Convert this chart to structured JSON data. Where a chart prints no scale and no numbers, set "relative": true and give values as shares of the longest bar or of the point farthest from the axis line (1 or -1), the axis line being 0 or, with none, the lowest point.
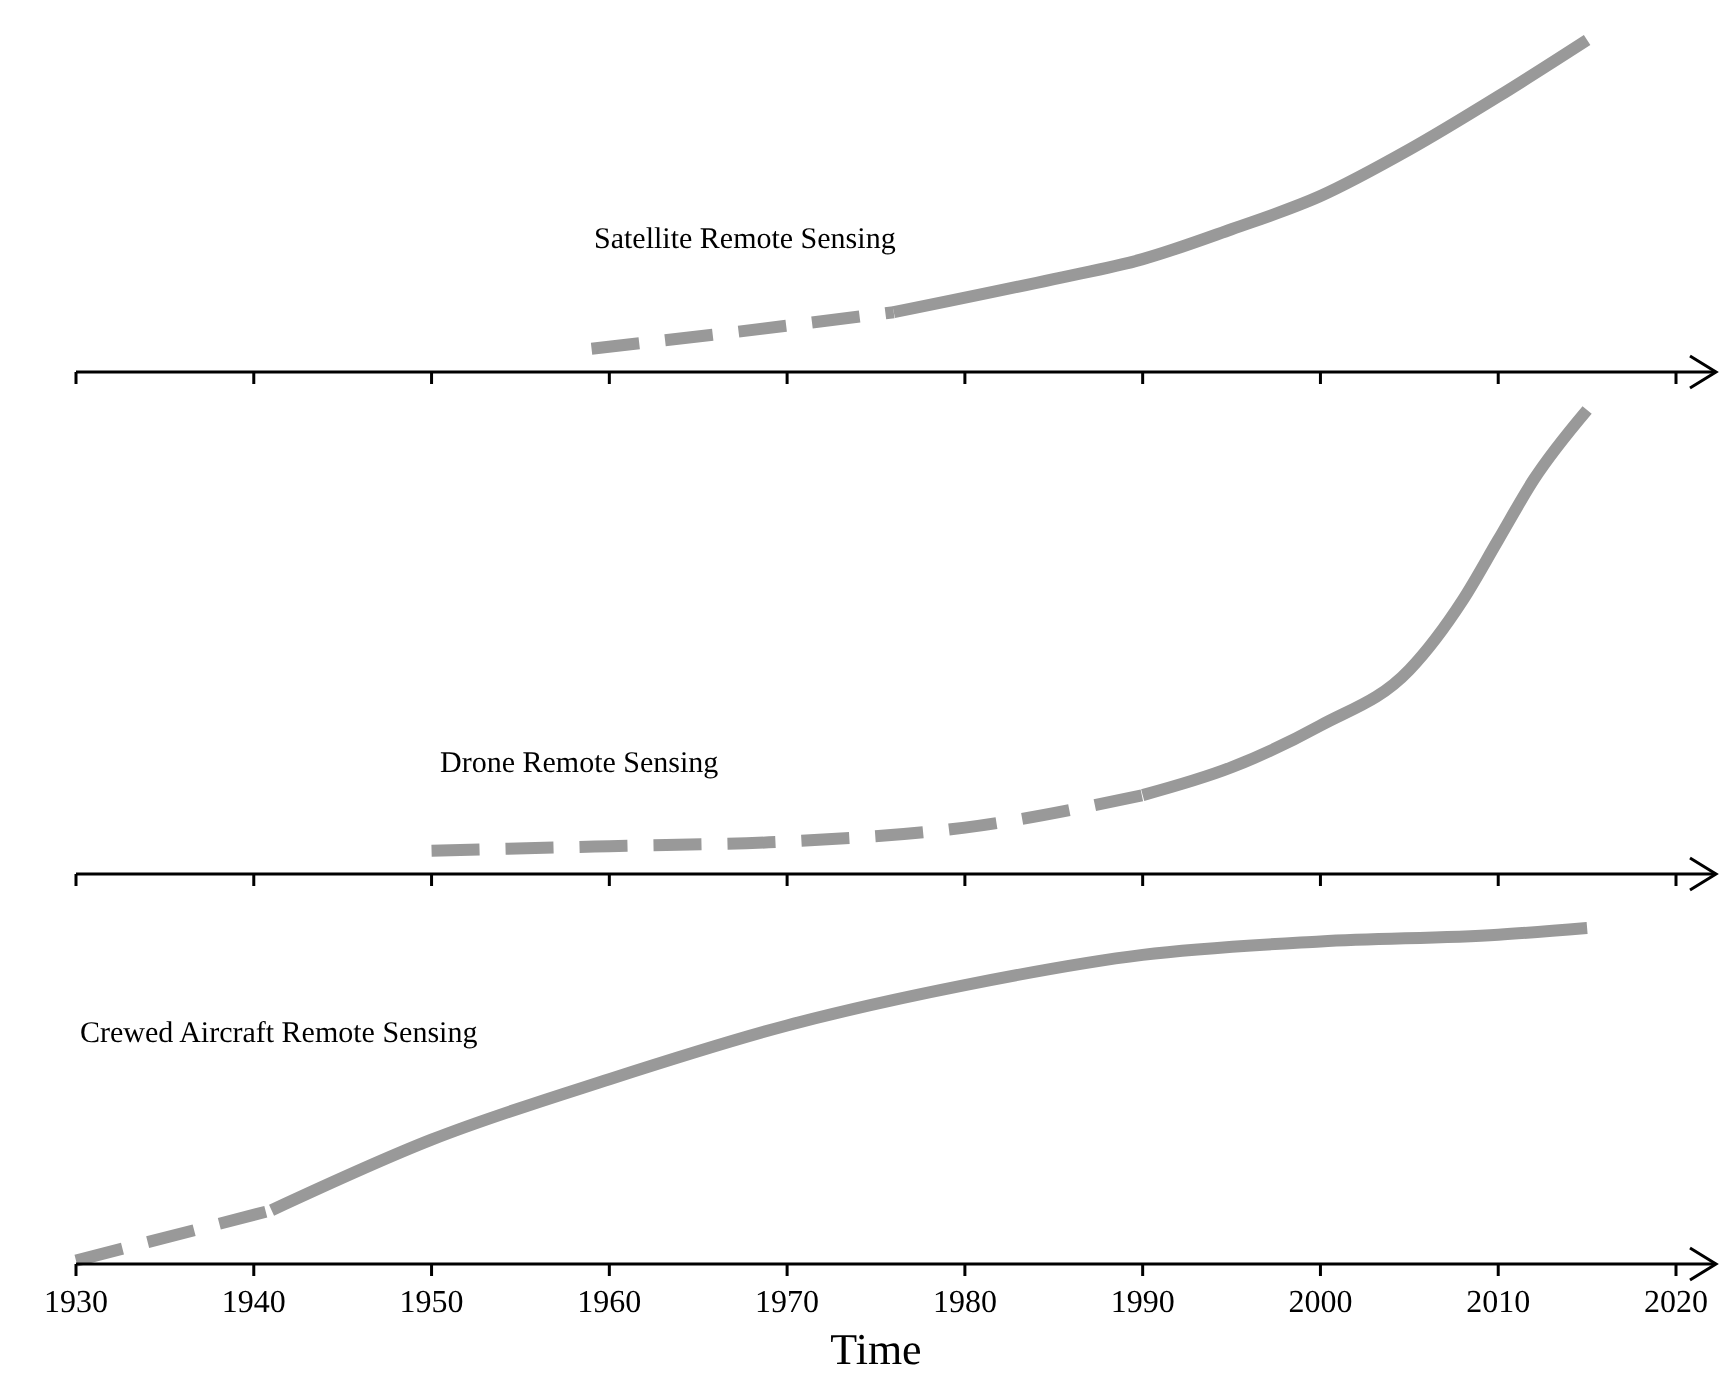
{
  "chart_data": [
    {
      "type": "line",
      "relative": true,
      "xlim": [
        1930,
        2020
      ],
      "xticks": [
        1930,
        1940,
        1950,
        1960,
        1970,
        1980,
        1990,
        2000,
        2010,
        2020
      ],
      "tick_labels": false,
      "grid": false,
      "marker": "none",
      "annotations": [
        "Satellite Remote Sensing"
      ],
      "series": [
        {
          "line_style": "dashed",
          "color": "#999999",
          "x": [
            1959,
            1967,
            1976
          ],
          "values": [
            0.07,
            0.12,
            0.18
          ]
        },
        {
          "line_style": "solid",
          "color": "#999999",
          "x": [
            1976,
            1985,
            1990,
            1995,
            2000,
            2005,
            2010,
            2015
          ],
          "values": [
            0.18,
            0.28,
            0.34,
            0.43,
            0.53,
            0.67,
            0.83,
            1
          ]
        }
      ]
    },
    {
      "type": "line",
      "relative": true,
      "xlim": [
        1930,
        2020
      ],
      "xticks": [
        1930,
        1940,
        1950,
        1960,
        1970,
        1980,
        1990,
        2000,
        2010,
        2020
      ],
      "tick_labels": false,
      "grid": false,
      "marker": "none",
      "annotations": [
        "Drone Remote Sensing"
      ],
      "series": [
        {
          "line_style": "dashed",
          "color": "#999999",
          "x": [
            1950,
            1960,
            1970,
            1980,
            1990
          ],
          "values": [
            0.05,
            0.06,
            0.07,
            0.1,
            0.17
          ]
        },
        {
          "line_style": "solid",
          "color": "#999999",
          "x": [
            1990,
            1995,
            2000,
            2005,
            2008,
            2010,
            2012,
            2015
          ],
          "values": [
            0.17,
            0.23,
            0.32,
            0.44,
            0.59,
            0.72,
            0.85,
            1
          ]
        }
      ]
    },
    {
      "type": "line",
      "relative": true,
      "xlim": [
        1930,
        2020
      ],
      "xticks": [
        1930,
        1940,
        1950,
        1960,
        1970,
        1980,
        1990,
        2000,
        2010,
        2020
      ],
      "tick_labels": "x",
      "xlabel": "Time",
      "grid": false,
      "marker": "none",
      "annotations": [
        "Crewed Aircraft Remote Sensing"
      ],
      "series": [
        {
          "line_style": "dashed",
          "color": "#999999",
          "x": [
            1930,
            1941
          ],
          "values": [
            0.01,
            0.16
          ]
        },
        {
          "line_style": "solid",
          "color": "#999999",
          "x": [
            1941,
            1950,
            1960,
            1970,
            1980,
            1990,
            2000,
            2010,
            2015
          ],
          "values": [
            0.16,
            0.37,
            0.55,
            0.71,
            0.83,
            0.92,
            0.96,
            0.98,
            1
          ]
        }
      ]
    }
  ]
}
